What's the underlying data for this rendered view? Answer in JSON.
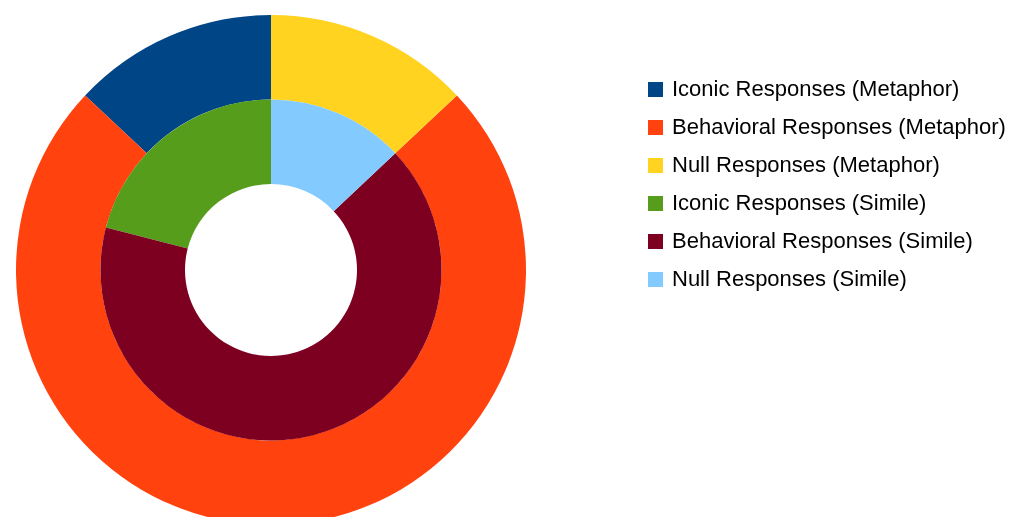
{
  "chart_data": {
    "type": "donut",
    "categories": [
      "Iconic Responses (Metaphor)",
      "Behavioral Responses (Metaphor)",
      "Null Responses (Metaphor)",
      "Iconic Responses (Simile)",
      "Behavioral Responses (Simile)",
      "Null Responses (Simile)"
    ],
    "colors": [
      "#004586",
      "#ff420e",
      "#ffd320",
      "#579d1c",
      "#7e0021",
      "#83caff"
    ],
    "series": [
      {
        "values": [
          13,
          74,
          13,
          null,
          null,
          null
        ]
      },
      {
        "values": [
          null,
          null,
          null,
          21,
          66,
          13
        ]
      }
    ],
    "legend": "right"
  }
}
